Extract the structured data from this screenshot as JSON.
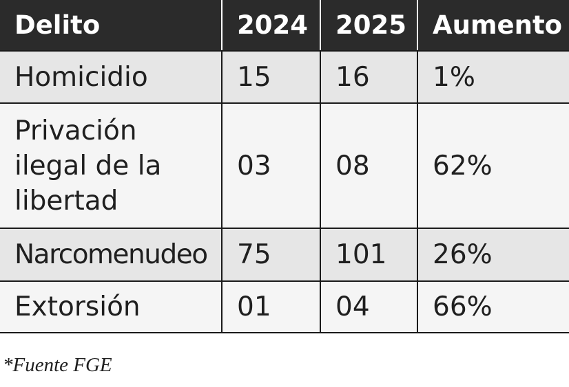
{
  "chart_data": {
    "type": "table",
    "columns": [
      "Delito",
      "2024",
      "2025",
      "Aumento"
    ],
    "rows": [
      {
        "crime": "Homicidio",
        "y2024": "15",
        "y2025": "16",
        "increase": "1%"
      },
      {
        "crime": "Privación ilegal de la libertad",
        "y2024": "03",
        "y2025": "08",
        "increase": "62%"
      },
      {
        "crime": "Narcomenudeo",
        "y2024": "75",
        "y2025": "101",
        "increase": "26%"
      },
      {
        "crime": "Extorsión",
        "y2024": "01",
        "y2025": "04",
        "increase": "66%"
      }
    ]
  },
  "source_note": "*Fuente FGE",
  "colors": {
    "header_background": "#2b2b2b",
    "header_text": "#ffffff",
    "row_shaded": "#e6e6e6",
    "row_plain": "#f5f5f5",
    "border": "#1a1a1a"
  }
}
